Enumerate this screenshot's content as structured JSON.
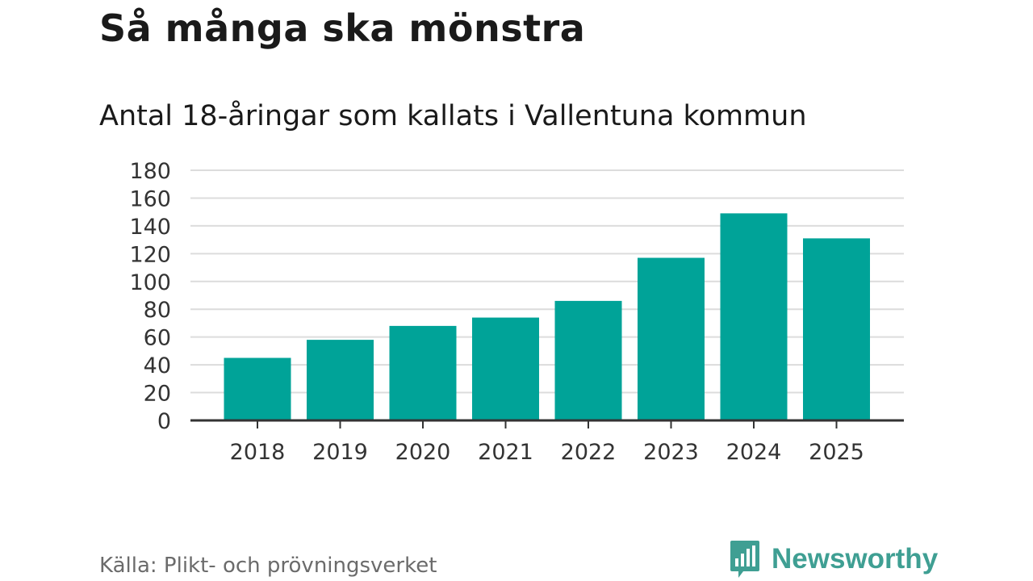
{
  "title": "Så många ska mönstra",
  "chart_data": {
    "type": "bar",
    "title": "Så många ska mönstra",
    "subtitle": "Antal 18-åringar som kallats i Vallentuna kommun",
    "categories": [
      "2018",
      "2019",
      "2020",
      "2021",
      "2022",
      "2023",
      "2024",
      "2025"
    ],
    "values": [
      45,
      58,
      68,
      74,
      86,
      117,
      149,
      131
    ],
    "yticks": [
      0,
      20,
      40,
      60,
      80,
      100,
      120,
      140,
      160,
      180
    ],
    "ylim": [
      0,
      180
    ],
    "xlabel": "",
    "ylabel": "",
    "grid": true,
    "bar_color": "#00a398"
  },
  "source": "Källa: Plikt- och prövningsverket",
  "brand": {
    "name": "Newsworthy",
    "color": "#3f9f93",
    "icon": "newsworthy-logo-icon"
  }
}
